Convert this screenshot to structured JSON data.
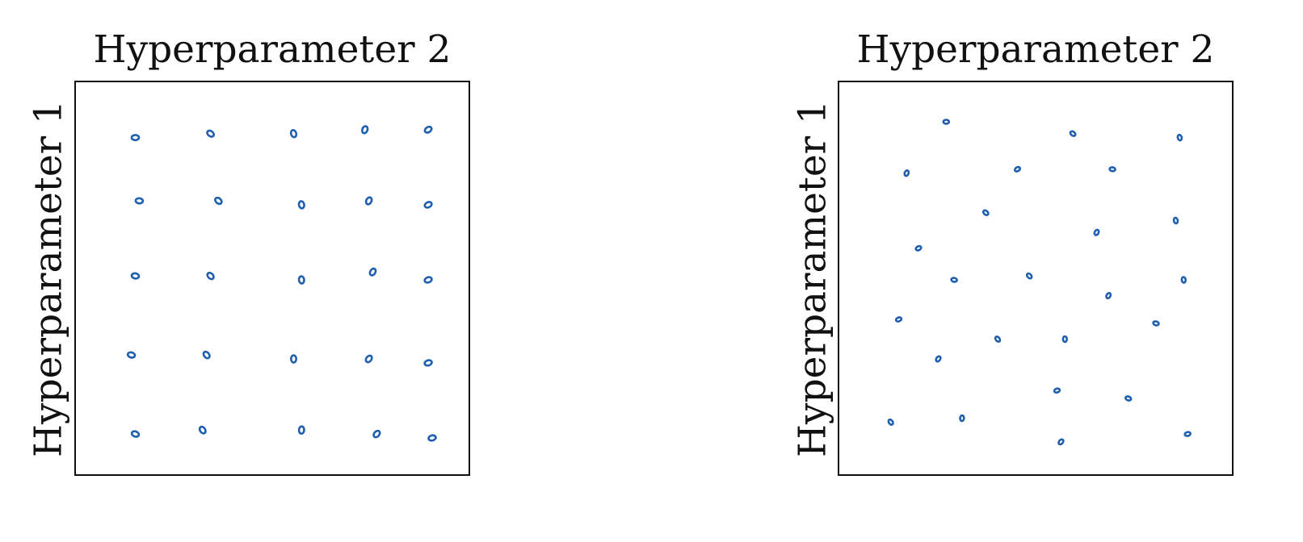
{
  "colors": {
    "point": "#1f5fae",
    "axis": "#111111"
  },
  "chart_data": [
    {
      "type": "scatter",
      "title": "Hyperparameter 2",
      "xlabel": "",
      "ylabel": "Hyperparameter 1",
      "xlim": [
        0,
        1
      ],
      "ylim": [
        0,
        1
      ],
      "grid": false,
      "points": [
        {
          "x": 0.15,
          "y": 0.86
        },
        {
          "x": 0.34,
          "y": 0.87
        },
        {
          "x": 0.55,
          "y": 0.87
        },
        {
          "x": 0.73,
          "y": 0.88
        },
        {
          "x": 0.89,
          "y": 0.88
        },
        {
          "x": 0.16,
          "y": 0.7
        },
        {
          "x": 0.36,
          "y": 0.7
        },
        {
          "x": 0.57,
          "y": 0.69
        },
        {
          "x": 0.74,
          "y": 0.7
        },
        {
          "x": 0.89,
          "y": 0.69
        },
        {
          "x": 0.15,
          "y": 0.51
        },
        {
          "x": 0.34,
          "y": 0.51
        },
        {
          "x": 0.57,
          "y": 0.5
        },
        {
          "x": 0.75,
          "y": 0.52
        },
        {
          "x": 0.89,
          "y": 0.5
        },
        {
          "x": 0.14,
          "y": 0.31
        },
        {
          "x": 0.33,
          "y": 0.31
        },
        {
          "x": 0.55,
          "y": 0.3
        },
        {
          "x": 0.74,
          "y": 0.3
        },
        {
          "x": 0.89,
          "y": 0.29
        },
        {
          "x": 0.15,
          "y": 0.11
        },
        {
          "x": 0.32,
          "y": 0.12
        },
        {
          "x": 0.57,
          "y": 0.12
        },
        {
          "x": 0.76,
          "y": 0.11
        },
        {
          "x": 0.9,
          "y": 0.1
        }
      ]
    },
    {
      "type": "scatter",
      "title": "Hyperparameter 2",
      "xlabel": "",
      "ylabel": "Hyperparameter 1",
      "xlim": [
        0,
        1
      ],
      "ylim": [
        0,
        1
      ],
      "grid": false,
      "points": [
        {
          "x": 0.27,
          "y": 0.9
        },
        {
          "x": 0.59,
          "y": 0.87
        },
        {
          "x": 0.86,
          "y": 0.86
        },
        {
          "x": 0.17,
          "y": 0.77
        },
        {
          "x": 0.45,
          "y": 0.78
        },
        {
          "x": 0.69,
          "y": 0.78
        },
        {
          "x": 0.37,
          "y": 0.67
        },
        {
          "x": 0.85,
          "y": 0.65
        },
        {
          "x": 0.65,
          "y": 0.62
        },
        {
          "x": 0.2,
          "y": 0.58
        },
        {
          "x": 0.29,
          "y": 0.5
        },
        {
          "x": 0.48,
          "y": 0.51
        },
        {
          "x": 0.87,
          "y": 0.5
        },
        {
          "x": 0.68,
          "y": 0.46
        },
        {
          "x": 0.15,
          "y": 0.4
        },
        {
          "x": 0.8,
          "y": 0.39
        },
        {
          "x": 0.4,
          "y": 0.35
        },
        {
          "x": 0.57,
          "y": 0.35
        },
        {
          "x": 0.25,
          "y": 0.3
        },
        {
          "x": 0.55,
          "y": 0.22
        },
        {
          "x": 0.73,
          "y": 0.2
        },
        {
          "x": 0.13,
          "y": 0.14
        },
        {
          "x": 0.31,
          "y": 0.15
        },
        {
          "x": 0.56,
          "y": 0.09
        },
        {
          "x": 0.88,
          "y": 0.11
        }
      ]
    }
  ]
}
